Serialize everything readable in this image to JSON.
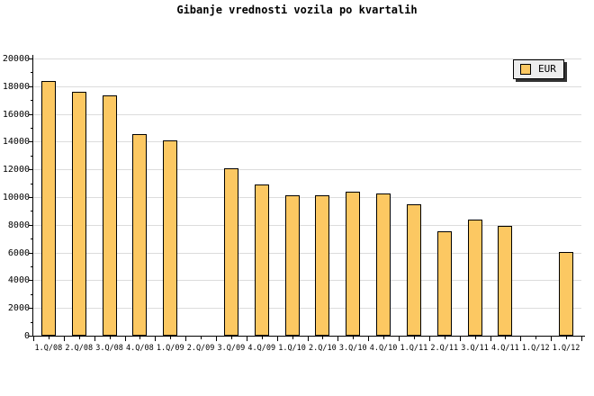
{
  "page": {
    "background": "#FFFFFF"
  },
  "chart_data": {
    "type": "bar",
    "title": "Gibanje vrednosti vozila po kvartalih",
    "categories": [
      "1.Q/08",
      "2.Q/08",
      "3.Q/08",
      "4.Q/08",
      "1.Q/09",
      "2.Q/09",
      "3.Q/09",
      "4.Q/09",
      "1.Q/10",
      "2.Q/10",
      "3.Q/10",
      "4.Q/10",
      "1.Q/11",
      "2.Q/11",
      "3.Q/11",
      "4.Q/11",
      "1.Q/12",
      "1.Q/12"
    ],
    "series": [
      {
        "name": "EUR",
        "values": [
          18400,
          17600,
          17350,
          14550,
          14100,
          null,
          12100,
          10900,
          10100,
          10100,
          10400,
          10250,
          9450,
          7500,
          8400,
          7900,
          null,
          6050
        ]
      }
    ],
    "xlabel": "",
    "ylabel": "",
    "ylim": [
      0,
      20000
    ],
    "ytick_step": 2000,
    "yminor_step": 1000,
    "grid": "horizontal-only",
    "legend_position": "top-right",
    "colors": {
      "bar_fill": "#FCC862",
      "bar_border": "#000000",
      "grid_line": "#DCDCDC",
      "axis": "#000000",
      "legend_bg": "#EDEDED",
      "legend_shadow": "#333333",
      "text": "#000000"
    }
  }
}
